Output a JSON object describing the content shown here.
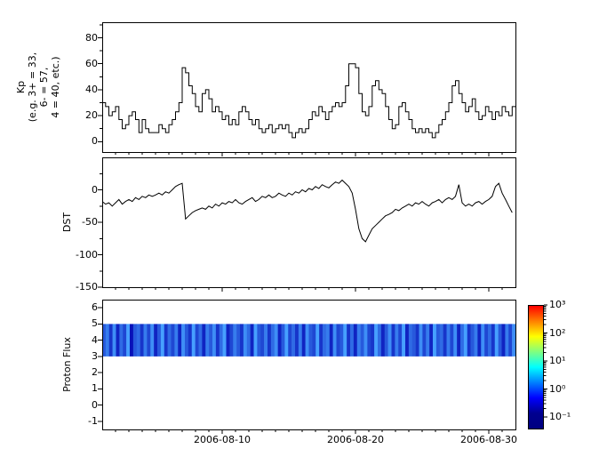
{
  "labels": {
    "kp": "Kp\n(e.g. 3+ = 33,\n6- = 57,\n4 = 40, etc.)",
    "dst": "DST",
    "proton": "Proton Flux"
  },
  "xaxis": {
    "tick_days": [
      10,
      20,
      30
    ],
    "tick_labels": [
      "2006-08-10",
      "2006-08-20",
      "2006-08-30"
    ],
    "minor_tick_every_days": 1,
    "range": [
      "2006-08-01",
      "2006-09-01"
    ]
  },
  "colorbar": {
    "tick_labels": [
      "10³",
      "10²",
      "10¹",
      "10⁰",
      "10⁻¹"
    ],
    "log10_range": [
      -1,
      3
    ],
    "gradient_top_to_bottom": [
      "#ff0000",
      "#ff8000",
      "#ffff00",
      "#80ff80",
      "#00ffff",
      "#0080ff",
      "#0000ff",
      "#000090",
      "#000080"
    ]
  },
  "chart_data": [
    {
      "type": "line",
      "name": "Kp",
      "draw_style": "steps",
      "x_start_day": 1,
      "x_step_days": 0.25,
      "x_range": [
        "2006-08-01",
        "2006-09-01"
      ],
      "ylim": [
        -8,
        92
      ],
      "yticks_major": [
        0,
        20,
        40,
        60,
        80
      ],
      "yticks_minor": [
        10,
        30,
        50,
        70,
        90
      ],
      "line_color": "#000000",
      "values": [
        30,
        27,
        20,
        23,
        27,
        17,
        10,
        13,
        20,
        23,
        17,
        7,
        17,
        10,
        7,
        7,
        7,
        13,
        10,
        7,
        13,
        17,
        23,
        30,
        57,
        53,
        43,
        37,
        27,
        23,
        37,
        40,
        33,
        23,
        27,
        23,
        17,
        20,
        13,
        17,
        13,
        23,
        27,
        23,
        17,
        13,
        17,
        10,
        7,
        10,
        13,
        7,
        10,
        13,
        10,
        13,
        7,
        3,
        7,
        10,
        7,
        10,
        17,
        23,
        20,
        27,
        23,
        17,
        23,
        27,
        30,
        27,
        30,
        43,
        60,
        60,
        57,
        37,
        23,
        20,
        27,
        43,
        47,
        40,
        37,
        27,
        17,
        10,
        13,
        27,
        30,
        23,
        17,
        10,
        7,
        10,
        7,
        10,
        7,
        3,
        7,
        13,
        17,
        23,
        30,
        43,
        47,
        37,
        30,
        23,
        27,
        33,
        23,
        17,
        20,
        27,
        23,
        17,
        23,
        20,
        27,
        23,
        20,
        27
      ]
    },
    {
      "type": "line",
      "name": "DST",
      "draw_style": "linear",
      "x_start_day": 1,
      "x_step_days": 0.25,
      "x_range": [
        "2006-08-01",
        "2006-09-01"
      ],
      "ylim": [
        -150,
        50
      ],
      "yticks_major": [
        0,
        -50,
        -100,
        -150
      ],
      "yticks_minor": [
        25,
        -25,
        -75,
        -125
      ],
      "line_color": "#000000",
      "values": [
        -18,
        -22,
        -20,
        -25,
        -20,
        -15,
        -22,
        -18,
        -15,
        -18,
        -12,
        -15,
        -10,
        -12,
        -8,
        -10,
        -8,
        -5,
        -8,
        -3,
        -5,
        0,
        5,
        8,
        10,
        -45,
        -40,
        -35,
        -32,
        -30,
        -28,
        -30,
        -25,
        -28,
        -22,
        -25,
        -20,
        -22,
        -18,
        -20,
        -15,
        -20,
        -22,
        -18,
        -15,
        -12,
        -18,
        -15,
        -10,
        -12,
        -8,
        -12,
        -10,
        -5,
        -8,
        -10,
        -5,
        -8,
        -3,
        -5,
        0,
        -3,
        2,
        0,
        5,
        2,
        8,
        5,
        3,
        8,
        12,
        10,
        15,
        10,
        5,
        -5,
        -30,
        -60,
        -75,
        -80,
        -70,
        -60,
        -55,
        -50,
        -45,
        -40,
        -38,
        -35,
        -30,
        -32,
        -28,
        -25,
        -22,
        -25,
        -20,
        -22,
        -18,
        -22,
        -25,
        -20,
        -18,
        -15,
        -20,
        -15,
        -12,
        -15,
        -10,
        8,
        -20,
        -25,
        -22,
        -25,
        -20,
        -18,
        -22,
        -18,
        -15,
        -10,
        5,
        10,
        -5,
        -15,
        -25,
        -35
      ]
    },
    {
      "type": "heatmap",
      "name": "Proton Flux",
      "x_range": [
        "2006-08-01",
        "2006-09-01"
      ],
      "ylim": [
        -1.5,
        6.5
      ],
      "yticks_major": [
        6,
        5,
        4,
        3,
        2,
        1,
        0,
        -1
      ],
      "band_y_range": [
        3,
        5
      ],
      "band_low_color": "#0000b0",
      "band_high_color": "#46a0ff",
      "stripe_values": [
        5,
        7,
        3,
        8,
        2,
        6,
        4,
        9,
        1,
        5,
        6,
        3,
        7,
        4,
        8,
        2,
        5,
        9,
        3,
        6,
        4,
        7,
        2,
        8,
        5,
        3,
        9,
        4,
        6,
        2,
        7,
        5,
        8,
        3,
        6,
        9,
        2,
        4,
        7,
        5,
        3,
        8,
        6,
        2,
        9,
        5,
        4,
        7,
        3,
        6,
        8,
        2,
        5,
        9,
        4,
        6,
        3,
        7,
        2,
        8,
        5,
        4,
        9,
        3,
        6,
        7,
        2,
        8,
        4,
        5,
        9,
        3,
        6,
        2,
        7,
        5,
        8,
        4,
        3,
        9,
        6,
        2,
        5,
        8,
        3,
        7,
        4,
        9,
        2,
        6,
        5,
        3,
        8,
        4,
        7,
        2,
        9,
        5,
        6,
        3,
        7,
        4,
        8,
        2,
        6,
        9,
        3,
        5,
        7,
        2,
        8,
        4,
        6,
        3,
        9,
        5,
        2,
        7,
        4,
        8
      ]
    }
  ]
}
